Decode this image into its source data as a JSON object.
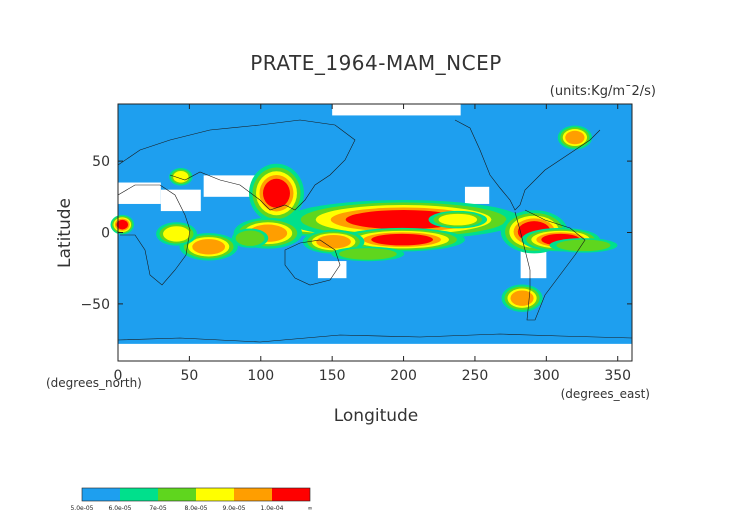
{
  "chart_data": {
    "type": "heatmap",
    "title": "PRATE_1964-MAM_NCEP",
    "units": "(units:Kg/m¯2/s)",
    "xlabel": "Longitude",
    "ylabel": "Latitude",
    "x_unit_label": "(degrees_east)",
    "y_unit_label": "(degrees_north)",
    "xlim": [
      0,
      360
    ],
    "ylim": [
      -90,
      90
    ],
    "x_ticks": [
      "0",
      "50",
      "100",
      "150",
      "200",
      "250",
      "300",
      "350"
    ],
    "y_ticks": [
      "50",
      "0",
      "−50"
    ],
    "background_level_color": "#1e9fef",
    "missing_color": "#ffffff",
    "colorbar": {
      "labels": [
        "5.0e-05",
        "6.0e-05",
        "7e-05",
        "8.0e-05",
        "9.0e-05",
        "1.0e-04",
        "∞"
      ],
      "colors": [
        "#1e9fef",
        "#00e08c",
        "#5fd61e",
        "#ffff00",
        "#ff9e00",
        "#ff0000"
      ]
    },
    "regions": [
      {
        "lon": [
          133,
          176
        ],
        "lat": [
          3,
          10
        ],
        "level": 6
      },
      {
        "lon": [
          170,
          230
        ],
        "lat": [
          4,
          14
        ],
        "level": 6
      },
      {
        "lon": [
          183,
          215
        ],
        "lat": [
          -8,
          -2
        ],
        "level": 6
      },
      {
        "lon": [
          283,
          300
        ],
        "lat": [
          -5,
          6
        ],
        "level": 6
      },
      {
        "lon": [
          300,
          320
        ],
        "lat": [
          -8,
          -2
        ],
        "level": 6
      },
      {
        "lon": [
          0,
          6
        ],
        "lat": [
          3,
          8
        ],
        "level": 6
      },
      {
        "lon": [
          104,
          118
        ],
        "lat": [
          20,
          35
        ],
        "level": 6
      },
      {
        "lon": [
          277,
          289
        ],
        "lat": [
          -50,
          -42
        ],
        "level": 5
      },
      {
        "lon": [
          55,
          72
        ],
        "lat": [
          -14,
          -6
        ],
        "level": 5
      },
      {
        "lon": [
          95,
          115
        ],
        "lat": [
          -5,
          4
        ],
        "level": 5
      },
      {
        "lon": [
          228,
          248
        ],
        "lat": [
          6,
          12
        ],
        "level": 4
      },
      {
        "lon": [
          142,
          160
        ],
        "lat": [
          -10,
          -3
        ],
        "level": 5
      },
      {
        "lon": [
          34,
          48
        ],
        "lat": [
          -5,
          3
        ],
        "level": 4
      },
      {
        "lon": [
          312,
          340
        ],
        "lat": [
          -12,
          -6
        ],
        "level": 3
      },
      {
        "lon": [
          85,
          100
        ],
        "lat": [
          -8,
          0
        ],
        "level": 3
      },
      {
        "lon": [
          160,
          190
        ],
        "lat": [
          -18,
          -12
        ],
        "level": 3
      },
      {
        "lon": [
          40,
          48
        ],
        "lat": [
          36,
          42
        ],
        "level": 4
      },
      {
        "lon": [
          315,
          325
        ],
        "lat": [
          63,
          70
        ],
        "level": 5
      }
    ],
    "missing_regions": [
      {
        "lon": [
          0,
          30
        ],
        "lat": [
          20,
          35
        ]
      },
      {
        "lon": [
          30,
          58
        ],
        "lat": [
          15,
          30
        ]
      },
      {
        "lon": [
          60,
          110
        ],
        "lat": [
          25,
          40
        ]
      },
      {
        "lon": [
          140,
          160
        ],
        "lat": [
          -32,
          -20
        ]
      },
      {
        "lon": [
          243,
          260
        ],
        "lat": [
          20,
          32
        ]
      },
      {
        "lon": [
          282,
          300
        ],
        "lat": [
          -32,
          -10
        ]
      },
      {
        "lon": [
          0,
          360
        ],
        "lat": [
          -90,
          -78
        ]
      },
      {
        "lon": [
          150,
          240
        ],
        "lat": [
          82,
          90
        ]
      }
    ]
  }
}
